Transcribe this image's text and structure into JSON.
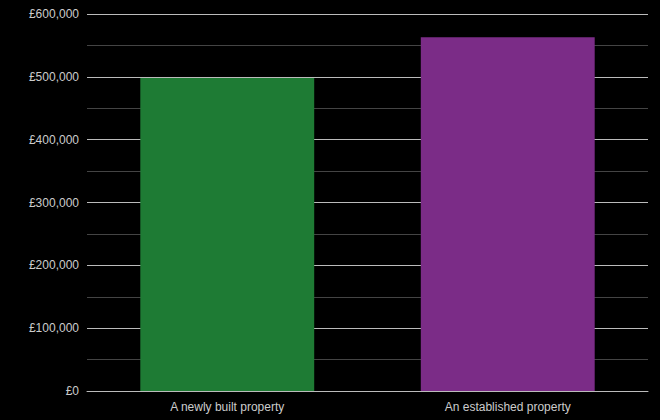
{
  "chart_data": {
    "type": "bar",
    "categories": [
      "A newly built property",
      "An established property"
    ],
    "values": [
      498000,
      563000
    ],
    "colors": [
      "#1e7b34",
      "#7b2c87"
    ],
    "ylim": [
      0,
      600000
    ],
    "yticks": [
      {
        "value": 0,
        "label": "£0"
      },
      {
        "value": 100000,
        "label": "£100,000"
      },
      {
        "value": 200000,
        "label": "£200,000"
      },
      {
        "value": 300000,
        "label": "£300,000"
      },
      {
        "value": 400000,
        "label": "£400,000"
      },
      {
        "value": 500000,
        "label": "£500,000"
      },
      {
        "value": 600000,
        "label": "£600,000"
      }
    ],
    "grid": true
  }
}
